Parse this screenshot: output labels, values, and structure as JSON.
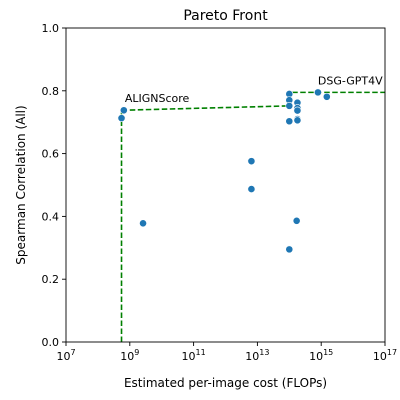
{
  "chart_data": {
    "type": "scatter",
    "title": "Pareto Front",
    "xlabel": "Estimated per-image cost (FLOPs)",
    "ylabel": "Spearman Correlation (All)",
    "x_scale": "log",
    "xlim": [
      10000000.0,
      1e+17
    ],
    "ylim": [
      0.0,
      1.0
    ],
    "x_ticks": [
      {
        "value": 10000000.0,
        "base": "10",
        "exp": "7"
      },
      {
        "value": 1000000000.0,
        "base": "10",
        "exp": "9"
      },
      {
        "value": 100000000000.0,
        "base": "10",
        "exp": "11"
      },
      {
        "value": 10000000000000.0,
        "base": "10",
        "exp": "13"
      },
      {
        "value": 1000000000000000.0,
        "base": "10",
        "exp": "15"
      },
      {
        "value": 1e+17,
        "base": "10",
        "exp": "17"
      }
    ],
    "y_ticks": [
      {
        "value": 0.0,
        "label": "0.0"
      },
      {
        "value": 0.2,
        "label": "0.2"
      },
      {
        "value": 0.4,
        "label": "0.4"
      },
      {
        "value": 0.6,
        "label": "0.6"
      },
      {
        "value": 0.8,
        "label": "0.8"
      },
      {
        "value": 1.0,
        "label": "1.0"
      }
    ],
    "grid": false,
    "points": [
      {
        "x": 550000000.0,
        "y": 0.713
      },
      {
        "x": 650000000.0,
        "y": 0.738
      },
      {
        "x": 2600000000.0,
        "y": 0.378
      },
      {
        "x": 6500000000000.0,
        "y": 0.576
      },
      {
        "x": 6500000000000.0,
        "y": 0.487
      },
      {
        "x": 100000000000000.0,
        "y": 0.79
      },
      {
        "x": 100000000000000.0,
        "y": 0.77
      },
      {
        "x": 100000000000000.0,
        "y": 0.752
      },
      {
        "x": 100000000000000.0,
        "y": 0.703
      },
      {
        "x": 100000000000000.0,
        "y": 0.295
      },
      {
        "x": 180000000000000.0,
        "y": 0.762
      },
      {
        "x": 180000000000000.0,
        "y": 0.745
      },
      {
        "x": 180000000000000.0,
        "y": 0.737
      },
      {
        "x": 180000000000000.0,
        "y": 0.71
      },
      {
        "x": 180000000000000.0,
        "y": 0.706
      },
      {
        "x": 170000000000000.0,
        "y": 0.386
      },
      {
        "x": 790000000000000.0,
        "y": 0.795
      },
      {
        "x": 1500000000000000.0,
        "y": 0.781
      }
    ],
    "pareto_front": [
      {
        "x": 550000000.0,
        "y": 0.0
      },
      {
        "x": 550000000.0,
        "y": 0.738
      },
      {
        "x": 100000000000000.0,
        "y": 0.752
      },
      {
        "x": 100000000000000.0,
        "y": 0.795
      },
      {
        "x": 1e+17,
        "y": 0.795
      }
    ],
    "annotations": [
      {
        "text": "ALIGNScore",
        "x": 700000000.0,
        "y": 0.765
      },
      {
        "text": "DSG-GPT4V",
        "x": 790000000000000.0,
        "y": 0.82
      }
    ],
    "colors": {
      "points": "#1f77b4",
      "pareto_front": "#008000"
    }
  }
}
